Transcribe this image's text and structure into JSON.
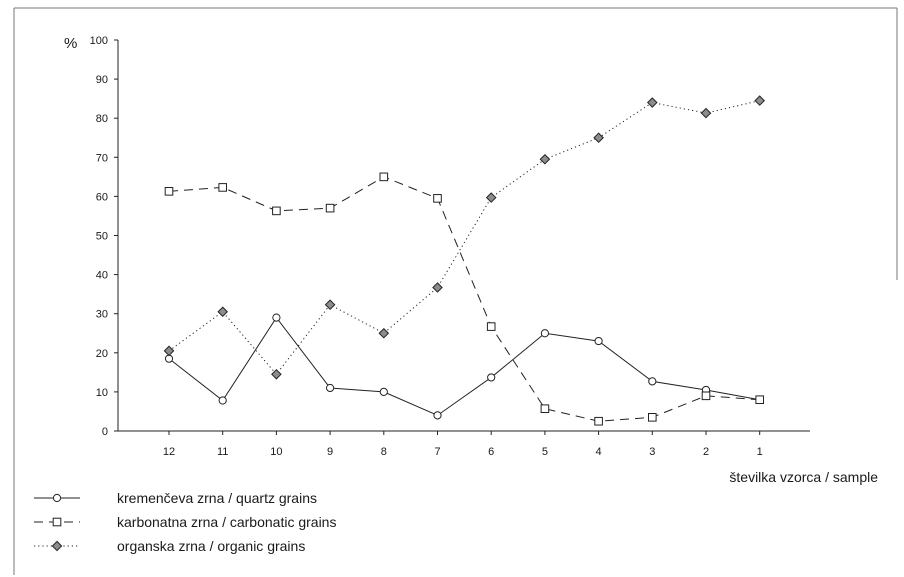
{
  "chart_data": {
    "type": "line",
    "ylabel": "%",
    "xlabel": "številka vzorca / sample",
    "categories": [
      "12",
      "11",
      "10",
      "9",
      "8",
      "7",
      "6",
      "5",
      "4",
      "3",
      "2",
      "1"
    ],
    "ylim": [
      0,
      100
    ],
    "yticks": [
      0,
      10,
      20,
      30,
      40,
      50,
      60,
      70,
      80,
      90,
      100
    ],
    "grid": false,
    "legend_position": "bottom-left",
    "series": [
      {
        "name": "kremenčeva zrna / quartz grains",
        "line_style": "solid",
        "marker": "circle-open",
        "values": [
          18.5,
          7.8,
          29,
          11,
          10,
          4,
          13.7,
          25,
          23,
          12.7,
          10.5,
          8
        ]
      },
      {
        "name": "karbonatna zrna / carbonatic grains",
        "line_style": "dashed",
        "marker": "square-open",
        "values": [
          61.3,
          62.3,
          56.3,
          57,
          65,
          59.5,
          26.7,
          5.7,
          2.5,
          3.5,
          9,
          8
        ]
      },
      {
        "name": "organska zrna / organic grains",
        "line_style": "dotted",
        "marker": "diamond-filled",
        "color": "#8c8c8c",
        "values": [
          20.5,
          30.5,
          14.5,
          32.3,
          25,
          36.7,
          59.7,
          69.5,
          75,
          84,
          81.3,
          84.5
        ]
      }
    ]
  }
}
